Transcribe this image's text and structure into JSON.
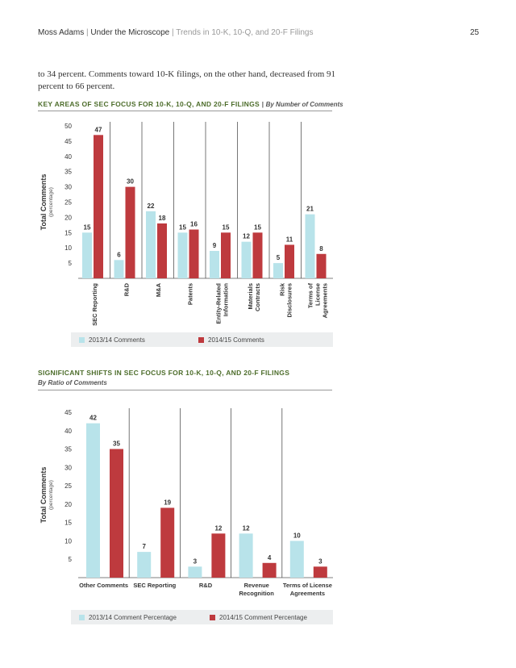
{
  "header": {
    "brand": "Moss Adams",
    "section": "Under the Microscope",
    "subtitle": "Trends in 10-K, 10-Q, and 20-F Filings",
    "page_number": "25"
  },
  "body_text": "to 34 percent. Comments toward 10-K filings, on the other hand, decreased from 91 percent to 66 percent.",
  "colors": {
    "series_2013": "#b8e3ea",
    "series_2014": "#be3a3e",
    "title_green": "#4d6d2b"
  },
  "chart1": {
    "title": "KEY AREAS OF SEC FOCUS FOR 10-K, 10-Q, AND 20-F FILINGS",
    "title_sep": "|",
    "title_sub": "By Number of Comments",
    "ylabel": "Total Comments",
    "ylabel_sub": "(percentage)"
  },
  "chart2": {
    "title": "SIGNIFICANT SHIFTS IN SEC FOCUS FOR 10-K, 10-Q, AND 20-F FILINGS",
    "title_sub": "By Ratio of Comments",
    "ylabel": "Total Comments",
    "ylabel_sub": "(percentage)"
  },
  "chart_data": [
    {
      "type": "bar",
      "title": "KEY AREAS OF SEC FOCUS FOR 10-K, 10-Q, AND 20-F FILINGS | By Number of Comments",
      "ylabel": "Total Comments (percentage)",
      "ylim": [
        0,
        50
      ],
      "yticks": [
        5,
        10,
        15,
        20,
        25,
        30,
        35,
        40,
        45,
        50
      ],
      "grid": "vertical category separators",
      "legend": "bottom",
      "categories": [
        "SEC Reporting",
        "R&D",
        "M&A",
        "Patents",
        "Entity-Related Information",
        "Materials Contracts",
        "Risk Disclosures",
        "Terms of License Agreements"
      ],
      "category_lines": [
        [
          "SEC Reporting"
        ],
        [
          "R&D"
        ],
        [
          "M&A"
        ],
        [
          "Patents"
        ],
        [
          "Entity-Related",
          "Information"
        ],
        [
          "Materials",
          "Contracts"
        ],
        [
          "Risk",
          "Disclosures"
        ],
        [
          "Terms of",
          "License",
          "Agreements"
        ]
      ],
      "series": [
        {
          "name": "2013/14 Comments",
          "values": [
            15,
            6,
            22,
            15,
            9,
            12,
            5,
            21
          ]
        },
        {
          "name": "2014/15 Comments",
          "values": [
            47,
            30,
            18,
            16,
            15,
            15,
            11,
            8
          ]
        }
      ]
    },
    {
      "type": "bar",
      "title": "SIGNIFICANT SHIFTS IN SEC FOCUS FOR 10-K, 10-Q, AND 20-F FILINGS",
      "subtitle": "By Ratio of Comments",
      "ylabel": "Total Comments (percentage)",
      "ylim": [
        0,
        45
      ],
      "yticks": [
        5,
        10,
        15,
        20,
        25,
        30,
        35,
        40,
        45
      ],
      "grid": "vertical category separators",
      "legend": "bottom",
      "categories": [
        "Other Comments",
        "SEC Reporting",
        "R&D",
        "Revenue Recognition",
        "Terms of License Agreements"
      ],
      "category_lines": [
        [
          "Other Comments"
        ],
        [
          "SEC Reporting"
        ],
        [
          "R&D"
        ],
        [
          "Revenue",
          "Recognition"
        ],
        [
          "Terms of License",
          "Agreements"
        ]
      ],
      "series": [
        {
          "name": "2013/14 Comment Percentage",
          "values": [
            42,
            7,
            3,
            12,
            10
          ]
        },
        {
          "name": "2014/15 Comment Percentage",
          "values": [
            35,
            19,
            12,
            4,
            3
          ]
        }
      ]
    }
  ]
}
